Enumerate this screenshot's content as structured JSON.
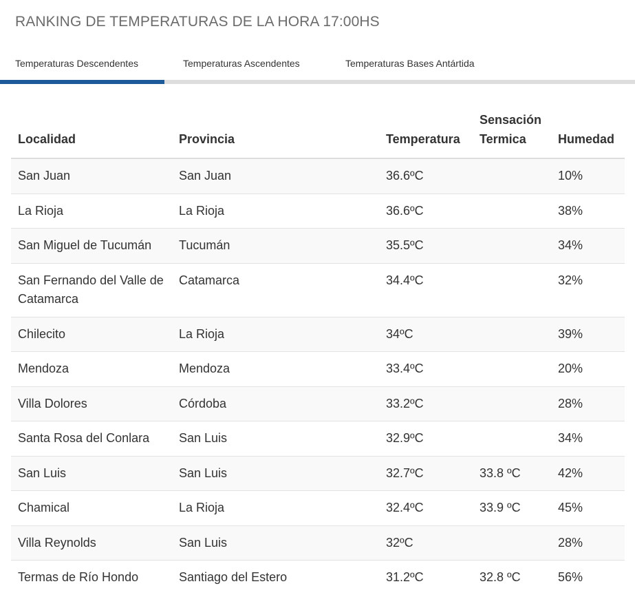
{
  "page": {
    "title": "RANKING DE TEMPERATURAS DE LA HORA 17:00HS"
  },
  "tabs": [
    {
      "label": "Temperaturas Descendentes",
      "active": true
    },
    {
      "label": "Temperaturas Ascendentes",
      "active": false
    },
    {
      "label": "Temperaturas Bases Antártida",
      "active": false
    }
  ],
  "colors": {
    "active_tab_indicator": "#1c5a99",
    "tab_track": "#dddddd",
    "title_text": "#6b6b6b"
  },
  "table": {
    "headers": {
      "localidad": "Localidad",
      "provincia": "Provincia",
      "temperatura": "Temperatura",
      "sensacion": "Sensación Termica",
      "humedad": "Humedad"
    },
    "rows": [
      {
        "localidad": "San Juan",
        "provincia": "San Juan",
        "temperatura": "36.6ºC",
        "sensacion": "",
        "humedad": "10%"
      },
      {
        "localidad": "La Rioja",
        "provincia": "La Rioja",
        "temperatura": "36.6ºC",
        "sensacion": "",
        "humedad": "38%"
      },
      {
        "localidad": "San Miguel de Tucumán",
        "provincia": "Tucumán",
        "temperatura": "35.5ºC",
        "sensacion": "",
        "humedad": "34%"
      },
      {
        "localidad": "San Fernando del Valle de Catamarca",
        "provincia": "Catamarca",
        "temperatura": "34.4ºC",
        "sensacion": "",
        "humedad": "32%"
      },
      {
        "localidad": "Chilecito",
        "provincia": "La Rioja",
        "temperatura": "34ºC",
        "sensacion": "",
        "humedad": "39%"
      },
      {
        "localidad": "Mendoza",
        "provincia": "Mendoza",
        "temperatura": "33.4ºC",
        "sensacion": "",
        "humedad": "20%"
      },
      {
        "localidad": "Villa Dolores",
        "provincia": "Córdoba",
        "temperatura": "33.2ºC",
        "sensacion": "",
        "humedad": "28%"
      },
      {
        "localidad": "Santa Rosa del Conlara",
        "provincia": "San Luis",
        "temperatura": "32.9ºC",
        "sensacion": "",
        "humedad": "34%"
      },
      {
        "localidad": "San Luis",
        "provincia": "San Luis",
        "temperatura": "32.7ºC",
        "sensacion": "33.8 ºC",
        "humedad": "42%"
      },
      {
        "localidad": "Chamical",
        "provincia": "La Rioja",
        "temperatura": "32.4ºC",
        "sensacion": "33.9 ºC",
        "humedad": "45%"
      },
      {
        "localidad": "Villa Reynolds",
        "provincia": "San Luis",
        "temperatura": "32ºC",
        "sensacion": "",
        "humedad": "28%"
      },
      {
        "localidad": "Termas de Río Hondo",
        "provincia": "Santiago del Estero",
        "temperatura": "31.2ºC",
        "sensacion": "32.8 ºC",
        "humedad": "56%"
      }
    ]
  }
}
